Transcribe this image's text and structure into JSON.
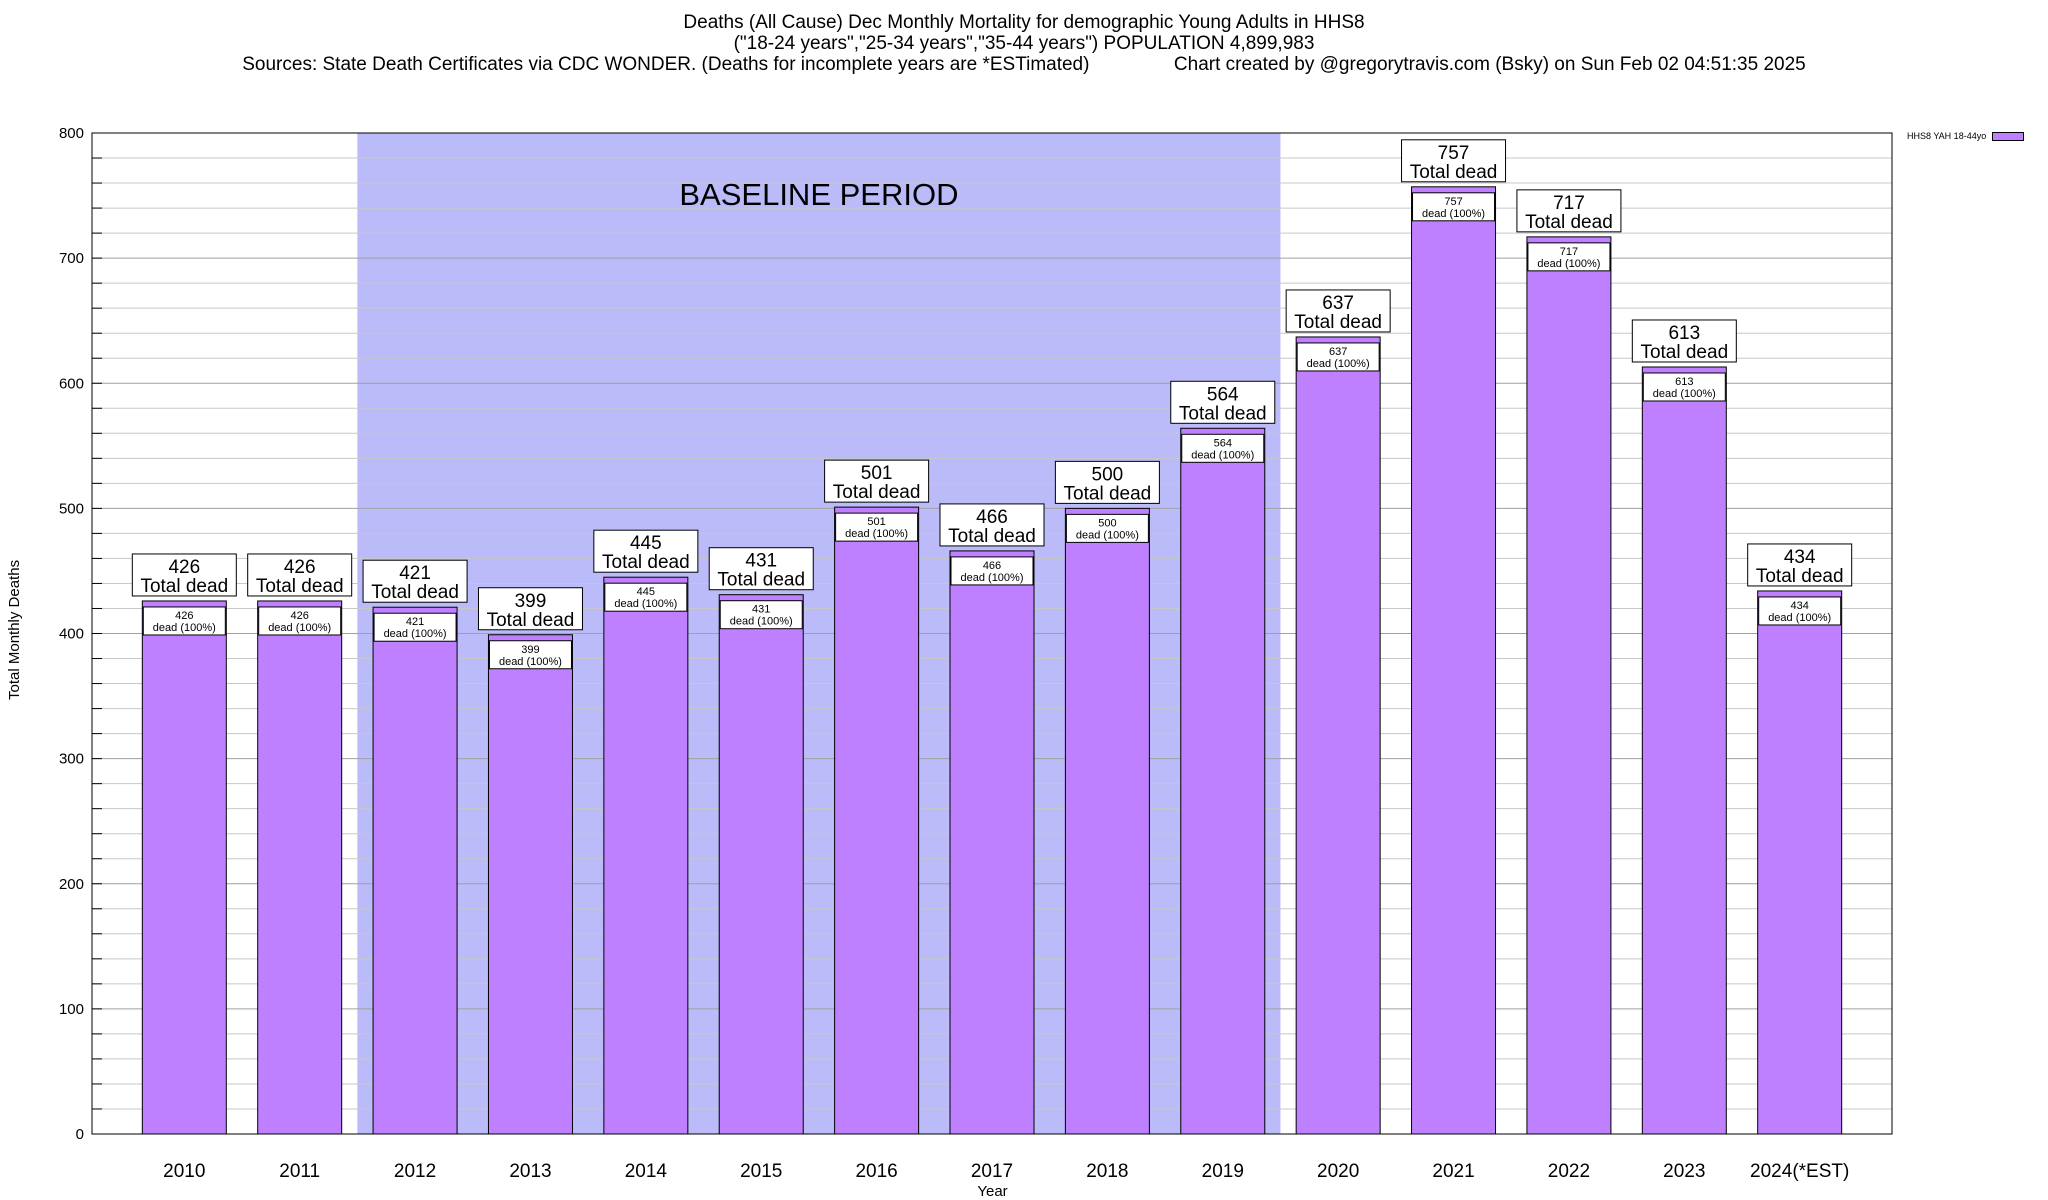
{
  "title_lines": [
    "Deaths (All Cause) Dec Monthly Mortality for demographic Young Adults in HHS8",
    "(\"18-24 years\",\"25-34 years\",\"35-44 years\") POPULATION 4,899,983",
    "Sources: State Death Certificates via CDC WONDER. (Deaths for incomplete years are *ESTimated)                Chart created by @gregorytravis.com (Bsky) on Sun Feb 02 04:51:35 2025"
  ],
  "colors": {
    "bar": "#bf80ff",
    "baseline_band": "#bbbbf9",
    "grid": "#c8c8c8"
  },
  "chart_data": {
    "type": "bar",
    "xlabel": "Year",
    "ylabel": "Total Monthly Deaths",
    "ylim": [
      0,
      800
    ],
    "yticks": [
      0,
      100,
      200,
      300,
      400,
      500,
      600,
      700,
      800
    ],
    "grid": true,
    "legend": {
      "placement": "top-right",
      "entries": [
        "HHS8 YAH 18-44yo"
      ]
    },
    "categories": [
      "2010",
      "2011",
      "2012",
      "2013",
      "2014",
      "2015",
      "2016",
      "2017",
      "2018",
      "2019",
      "2020",
      "2021",
      "2022",
      "2023",
      "2024(*EST)"
    ],
    "series": [
      {
        "name": "HHS8 YAH 18-44yo",
        "values": [
          426,
          426,
          421,
          399,
          445,
          431,
          501,
          466,
          500,
          564,
          637,
          757,
          717,
          613,
          434
        ]
      }
    ],
    "top_label_suffix": "Total dead",
    "inner_label_suffix": "dead (100%)",
    "baseline_period": {
      "label": "BASELINE PERIOD",
      "from": "2012",
      "to": "2019"
    }
  }
}
